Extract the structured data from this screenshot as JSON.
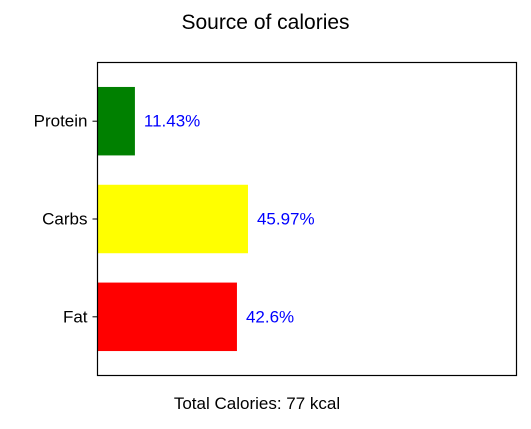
{
  "chart_data": {
    "type": "bar",
    "orientation": "horizontal",
    "title": "Source of calories",
    "xlabel": "Total Calories: 77 kcal",
    "ylabel": "",
    "categories": [
      "Fat",
      "Carbs",
      "Protein"
    ],
    "values": [
      42.6,
      45.97,
      11.43
    ],
    "data_labels": [
      "42.6%",
      "45.97%",
      "11.43%"
    ],
    "colors": [
      "#ff0000",
      "#ffff00",
      "#008000"
    ],
    "label_color": "#0000ff",
    "xlim": [
      0,
      128
    ],
    "x_ticks_visible": false,
    "grid": false,
    "legend": "none"
  }
}
